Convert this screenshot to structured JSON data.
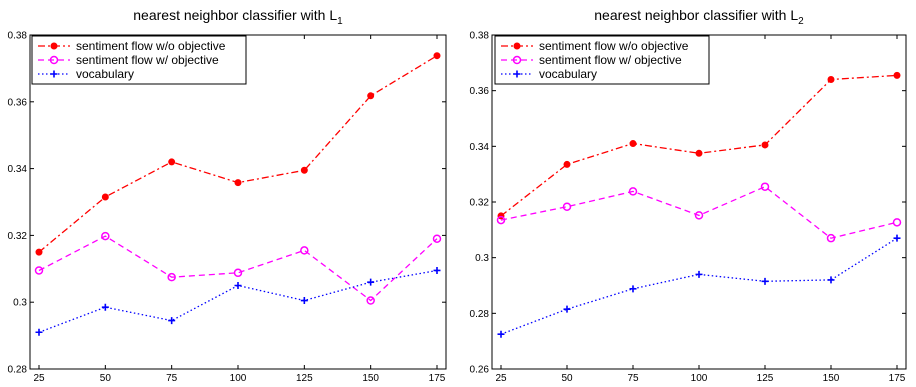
{
  "chart_data": [
    {
      "type": "line",
      "title": "nearest neighbor classifier with L",
      "title_subscript": "1",
      "xlabel": "",
      "ylabel": "",
      "x": [
        25,
        50,
        75,
        100,
        125,
        150,
        175
      ],
      "x_tick_labels": [
        "25",
        "50",
        "75",
        "100",
        "125",
        "150",
        "175"
      ],
      "ylim": [
        0.28,
        0.38
      ],
      "y_ticks": [
        0.28,
        0.3,
        0.32,
        0.34,
        0.36,
        0.38
      ],
      "y_tick_labels": [
        "0.28",
        "0.3",
        "0.32",
        "0.34",
        "0.36",
        "0.38"
      ],
      "grid": false,
      "legend_position": "top-left",
      "series": [
        {
          "name": "sentiment flow w/o objective",
          "color": "#ff0000",
          "line_style": "dash-dot",
          "marker": "dot",
          "values": [
            0.315,
            0.3315,
            0.342,
            0.3358,
            0.3395,
            0.3618,
            0.3738
          ]
        },
        {
          "name": "sentiment flow w/ objective",
          "color": "#ff00ff",
          "line_style": "dashed",
          "marker": "circle",
          "values": [
            0.3095,
            0.3198,
            0.3075,
            0.3088,
            0.3155,
            0.3005,
            0.319
          ]
        },
        {
          "name": "vocabulary",
          "color": "#0000ff",
          "line_style": "dotted",
          "marker": "plus",
          "values": [
            0.291,
            0.2985,
            0.2945,
            0.305,
            0.3005,
            0.306,
            0.3095
          ]
        }
      ]
    },
    {
      "type": "line",
      "title": "nearest neighbor classifier with L",
      "title_subscript": "2",
      "xlabel": "",
      "ylabel": "",
      "x": [
        25,
        50,
        75,
        100,
        125,
        150,
        175
      ],
      "x_tick_labels": [
        "25",
        "50",
        "75",
        "100",
        "125",
        "150",
        "175"
      ],
      "ylim": [
        0.26,
        0.38
      ],
      "y_ticks": [
        0.26,
        0.28,
        0.3,
        0.32,
        0.34,
        0.36,
        0.38
      ],
      "y_tick_labels": [
        "0.26",
        "0.28",
        "0.3",
        "0.32",
        "0.34",
        "0.36",
        "0.38"
      ],
      "grid": false,
      "legend_position": "top-left",
      "series": [
        {
          "name": "sentiment flow w/o objective",
          "color": "#ff0000",
          "line_style": "dash-dot",
          "marker": "dot",
          "values": [
            0.315,
            0.3335,
            0.341,
            0.3375,
            0.3405,
            0.364,
            0.3655
          ]
        },
        {
          "name": "sentiment flow w/ objective",
          "color": "#ff00ff",
          "line_style": "dashed",
          "marker": "circle",
          "values": [
            0.3135,
            0.3183,
            0.3238,
            0.3152,
            0.3255,
            0.307,
            0.3127
          ]
        },
        {
          "name": "vocabulary",
          "color": "#0000ff",
          "line_style": "dotted",
          "marker": "plus",
          "values": [
            0.2725,
            0.2815,
            0.2888,
            0.294,
            0.2915,
            0.292,
            0.307
          ]
        }
      ]
    }
  ]
}
